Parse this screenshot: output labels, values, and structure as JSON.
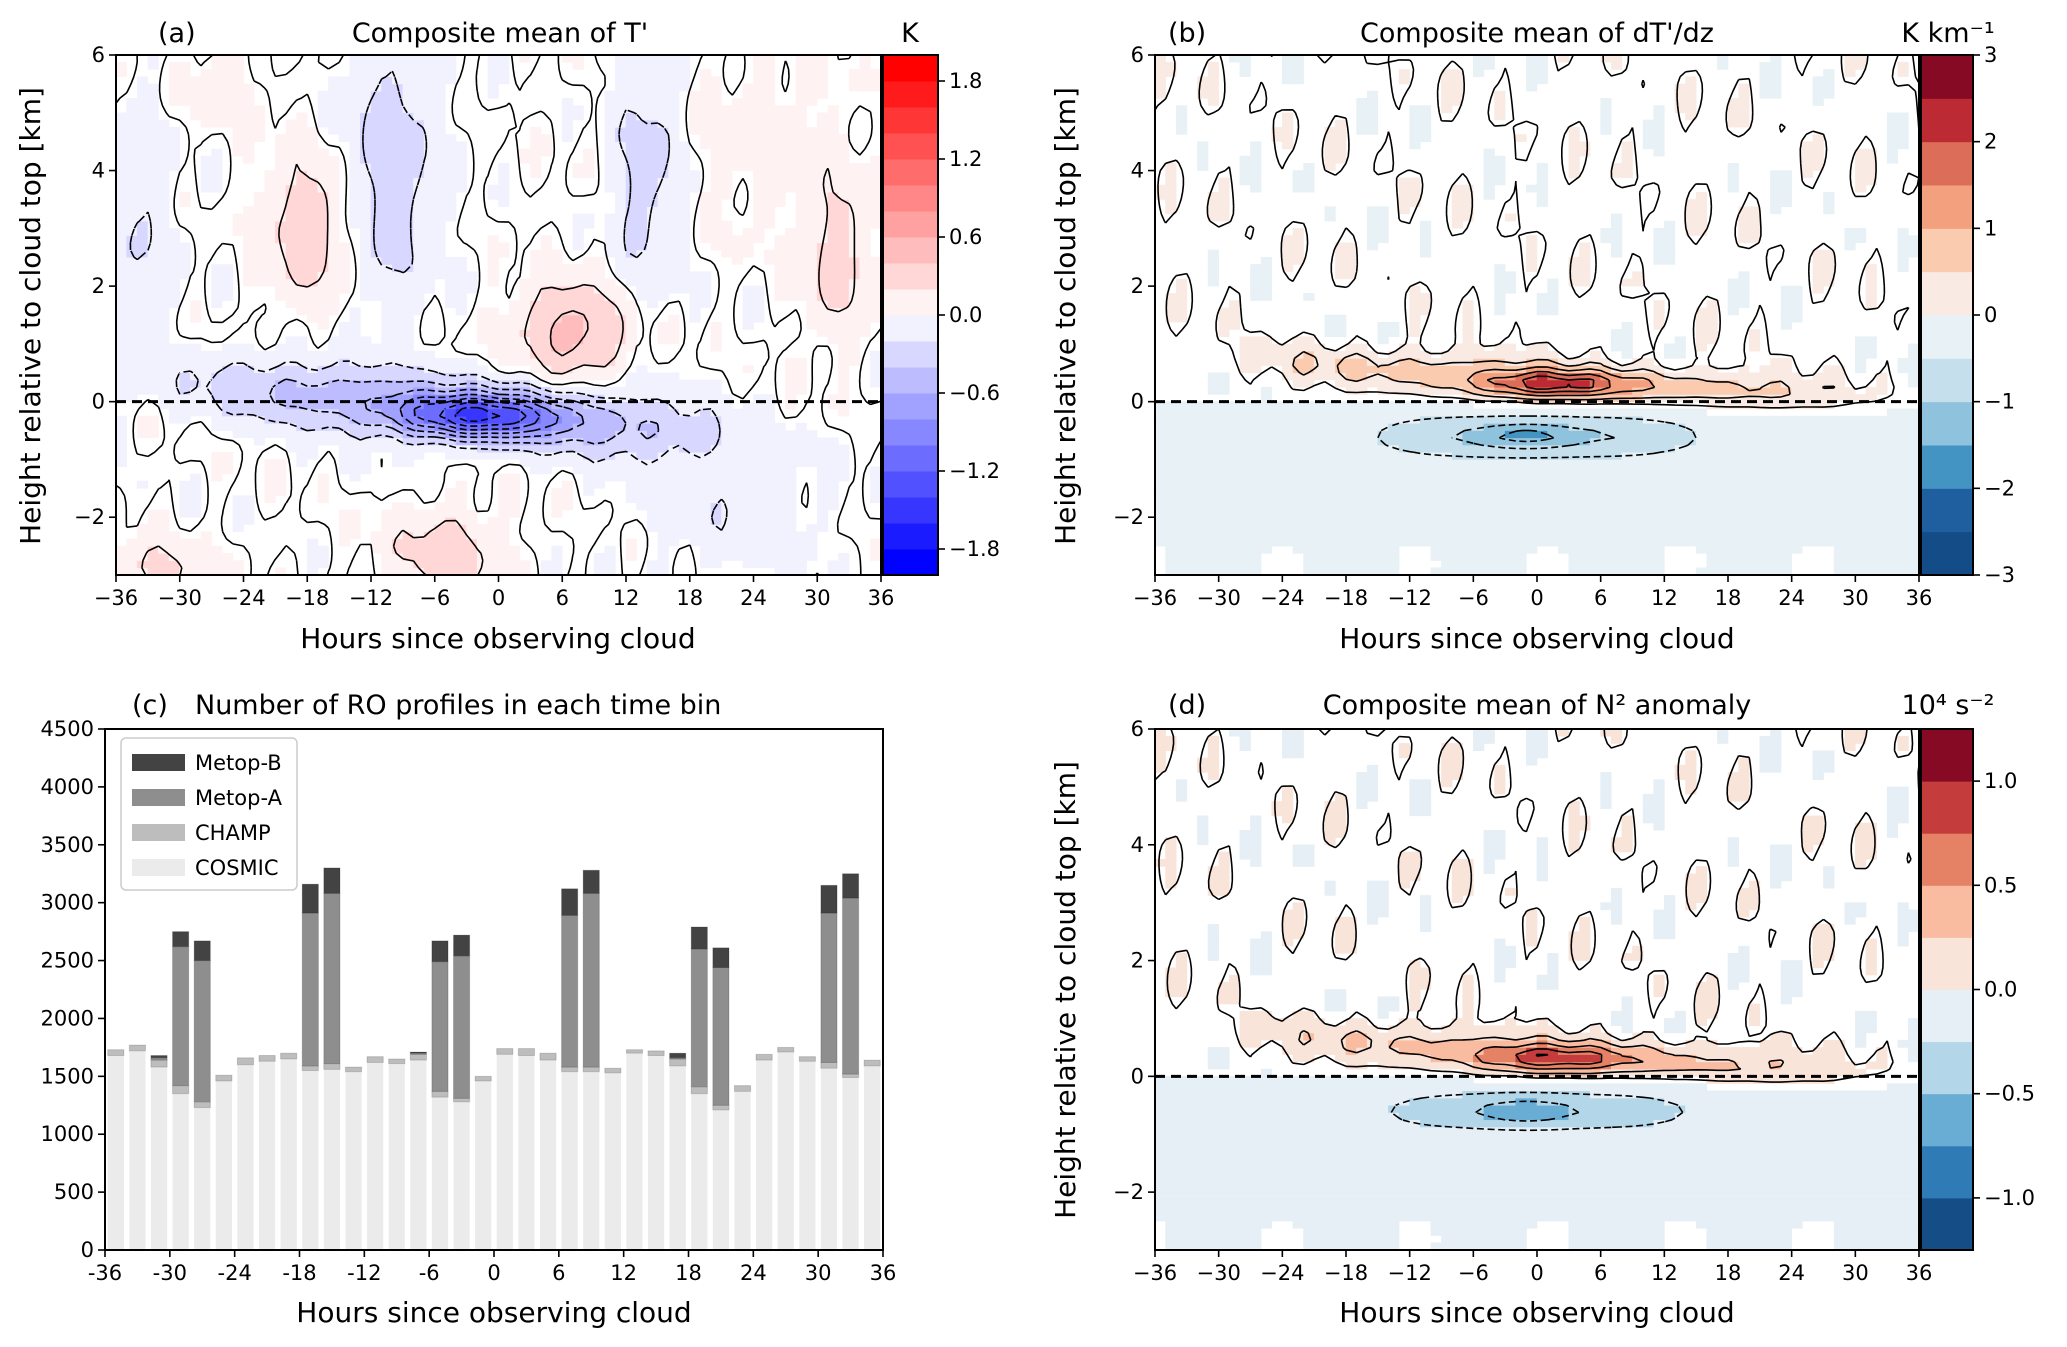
{
  "chart_data": [
    {
      "id": "a",
      "type": "heatmap",
      "panel_label": "(a)",
      "title": "Composite mean of T'",
      "xlabel": "Hours since observing cloud",
      "ylabel": "Height relative to cloud top [km]",
      "xlim": [
        -36,
        36
      ],
      "ylim": [
        -3,
        6
      ],
      "xticks": [
        -36,
        -30,
        -24,
        -18,
        -12,
        -6,
        0,
        6,
        12,
        18,
        24,
        30,
        36
      ],
      "xticklabels": [
        "−36",
        "−30",
        "−24",
        "−18",
        "−12",
        "−6",
        "0",
        "6",
        "12",
        "18",
        "24",
        "30",
        "36"
      ],
      "yticks": [
        -2,
        0,
        2,
        4
      ],
      "yticks_top": 6,
      "yticklabels": [
        "−2",
        "0",
        "2",
        "4",
        "6"
      ],
      "reference_line": {
        "y": 0,
        "style": "dashed"
      },
      "colormap": "bwr",
      "colorbar": {
        "unit": "K",
        "min": -2.0,
        "max": 2.0,
        "step": 0.2,
        "ticks": [
          1.8,
          1.2,
          0.6,
          0.0,
          -0.6,
          -1.2,
          -1.8
        ],
        "ticklabels": [
          "1.8",
          "1.2",
          "0.6",
          "0.0",
          "−0.6",
          "−1.2",
          "−1.8"
        ]
      }
    },
    {
      "id": "b",
      "type": "heatmap",
      "panel_label": "(b)",
      "title": "Composite mean of dT'/dz",
      "xlabel": "Hours since observing cloud",
      "ylabel": "Height relative to cloud top [km]",
      "xlim": [
        -36,
        36
      ],
      "ylim": [
        -3,
        6
      ],
      "xticks": [
        -36,
        -30,
        -24,
        -18,
        -12,
        -6,
        0,
        6,
        12,
        18,
        24,
        30,
        36
      ],
      "xticklabels": [
        "−36",
        "−30",
        "−24",
        "−18",
        "−12",
        "−6",
        "0",
        "6",
        "12",
        "18",
        "24",
        "30",
        "36"
      ],
      "yticks": [
        -2,
        0,
        2,
        4,
        6
      ],
      "yticklabels": [
        "−2",
        "0",
        "2",
        "4",
        "6"
      ],
      "reference_line": {
        "y": 0,
        "style": "dashed"
      },
      "colormap": "RdBu_r",
      "colorbar": {
        "unit": "K km⁻¹",
        "min": -3,
        "max": 3,
        "step": 0.5,
        "colors": [
          "#144c87",
          "#1f5fa0",
          "#4393c3",
          "#8fc2dd",
          "#c5dfed",
          "#e8f1f6",
          "#f9ebe3",
          "#fbcbb0",
          "#f3a07f",
          "#dc6e59",
          "#bc2a33",
          "#870a24"
        ],
        "ticks": [
          3,
          2,
          1,
          0,
          -1,
          -2,
          -3
        ],
        "ticklabels": [
          "3",
          "2",
          "1",
          "0",
          "−1",
          "−2",
          "−3"
        ]
      }
    },
    {
      "id": "c",
      "type": "bar",
      "stacked": true,
      "panel_label": "(c)",
      "title": "Number of RO profiles in each time bin",
      "xlabel": "Hours since observing cloud",
      "ylabel": "",
      "xlim": [
        -36,
        36
      ],
      "ylim": [
        0,
        4500
      ],
      "xticks": [
        -36,
        -30,
        -24,
        -18,
        -12,
        -6,
        0,
        6,
        12,
        18,
        24,
        30,
        36
      ],
      "xticklabels": [
        "-36",
        "-30",
        "-24",
        "-18",
        "-12",
        "-6",
        "0",
        "6",
        "12",
        "18",
        "24",
        "30",
        "36"
      ],
      "yticks": [
        0,
        500,
        1000,
        1500,
        2000,
        2500,
        3000,
        3500,
        4000,
        4500
      ],
      "yticklabels": [
        "0",
        "500",
        "1000",
        "1500",
        "2000",
        "2500",
        "3000",
        "3500",
        "4000",
        "4500"
      ],
      "legend_position": "upper-left",
      "x": [
        -35,
        -33,
        -31,
        -29,
        -27,
        -25,
        -23,
        -21,
        -19,
        -17,
        -15,
        -13,
        -11,
        -9,
        -7,
        -5,
        -3,
        -1,
        1,
        3,
        5,
        7,
        9,
        11,
        13,
        15,
        17,
        19,
        21,
        23,
        25,
        27,
        29,
        31,
        33,
        35
      ],
      "series": [
        {
          "name": "COSMIC",
          "color": "#ebebeb",
          "values": [
            1680,
            1720,
            1580,
            1350,
            1230,
            1460,
            1600,
            1630,
            1650,
            1550,
            1560,
            1540,
            1620,
            1610,
            1640,
            1320,
            1280,
            1460,
            1690,
            1680,
            1640,
            1540,
            1540,
            1530,
            1700,
            1680,
            1590,
            1350,
            1210,
            1370,
            1640,
            1710,
            1630,
            1570,
            1490,
            1590
          ]
        },
        {
          "name": "CHAMP",
          "color": "#bdbdbd",
          "values": [
            50,
            50,
            60,
            70,
            50,
            50,
            60,
            50,
            50,
            40,
            50,
            40,
            50,
            40,
            50,
            50,
            30,
            40,
            50,
            60,
            60,
            40,
            40,
            40,
            30,
            40,
            60,
            60,
            40,
            50,
            50,
            40,
            40,
            50,
            30,
            50
          ]
        },
        {
          "name": "Metop-A",
          "color": "#8e8e8e",
          "values": [
            0,
            0,
            20,
            1200,
            1220,
            0,
            0,
            0,
            0,
            1320,
            1470,
            0,
            0,
            0,
            10,
            1120,
            1230,
            0,
            0,
            0,
            0,
            1310,
            1500,
            0,
            0,
            0,
            10,
            1190,
            1190,
            0,
            0,
            0,
            0,
            1290,
            1520,
            0
          ]
        },
        {
          "name": "Metop-B",
          "color": "#434343",
          "values": [
            0,
            0,
            20,
            130,
            170,
            0,
            0,
            0,
            0,
            250,
            220,
            0,
            0,
            0,
            10,
            180,
            180,
            0,
            0,
            0,
            0,
            230,
            200,
            0,
            0,
            0,
            40,
            190,
            170,
            0,
            0,
            0,
            0,
            240,
            210,
            0
          ]
        }
      ],
      "legend_order": [
        "Metop-B",
        "Metop-A",
        "CHAMP",
        "COSMIC"
      ]
    },
    {
      "id": "d",
      "type": "heatmap",
      "panel_label": "(d)",
      "title": "Composite mean of N² anomaly",
      "xlabel": "Hours since observing cloud",
      "ylabel": "Height relative to cloud top [km]",
      "xlim": [
        -36,
        36
      ],
      "ylim": [
        -3,
        6
      ],
      "xticks": [
        -36,
        -30,
        -24,
        -18,
        -12,
        -6,
        0,
        6,
        12,
        18,
        24,
        30,
        36
      ],
      "xticklabels": [
        "−36",
        "−30",
        "−24",
        "−18",
        "−12",
        "−6",
        "0",
        "6",
        "12",
        "18",
        "24",
        "30",
        "36"
      ],
      "yticks": [
        -2,
        0,
        2,
        4,
        6
      ],
      "yticklabels": [
        "−2",
        "0",
        "2",
        "4",
        "6"
      ],
      "reference_line": {
        "y": 0,
        "style": "dashed"
      },
      "colormap": "RdBu_r",
      "colorbar": {
        "unit": "10⁴ s⁻²",
        "min": -1.25,
        "max": 1.25,
        "step": 0.25,
        "colors": [
          "#154d87",
          "#2f7bb6",
          "#69acd4",
          "#b3d6e8",
          "#e5eff5",
          "#f9e4da",
          "#f9bca1",
          "#e58266",
          "#c43c3c",
          "#870a24"
        ],
        "ticks": [
          1.0,
          0.5,
          0.0,
          -0.5,
          -1.0
        ],
        "ticklabels": [
          "1.0",
          "0.5",
          "0.0",
          "−0.5",
          "−1.0"
        ]
      }
    }
  ]
}
